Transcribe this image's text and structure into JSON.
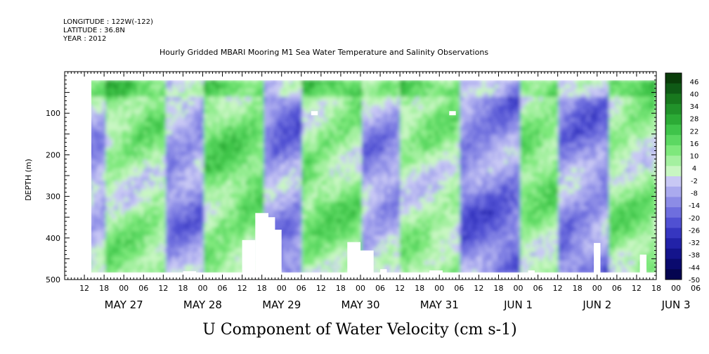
{
  "header": {
    "longitude": "LONGITUDE : 122W(-122)",
    "latitude": "LATITUDE : 36.8N",
    "year": "YEAR : 2012",
    "title": "Hourly Gridded MBARI Mooring M1 Sea Water Temperature and Salinity Observations"
  },
  "chart_data": {
    "type": "heatmap",
    "title": "Hourly Gridded MBARI Mooring M1 Sea Water Temperature and Salinity Observations",
    "xlabel": "U Component of Water Velocity (cm s-1)",
    "ylabel": "DEPTH (m)",
    "ylim": [
      500,
      0
    ],
    "y_ticks": [
      "100",
      "200",
      "300",
      "400",
      "500"
    ],
    "x_start_hour": 0,
    "x_end_hour": 180,
    "x_hour_ticks": [
      "12",
      "18",
      "00",
      "06",
      "12",
      "18",
      "00",
      "06",
      "12",
      "18",
      "00",
      "06",
      "12",
      "18",
      "00",
      "06",
      "12",
      "18",
      "00",
      "06",
      "12",
      "18",
      "00",
      "06",
      "12",
      "18",
      "00",
      "06",
      "12",
      "18",
      "00",
      "06"
    ],
    "x_date_labels": [
      "MAY 27",
      "MAY 28",
      "MAY 29",
      "MAY 30",
      "MAY 31",
      "JUN  1",
      "JUN  2",
      "JUN  3"
    ],
    "data_depth_range": [
      20,
      485
    ],
    "colorbar": {
      "min": -50,
      "max": 50,
      "labels": [
        "46",
        "40",
        "34",
        "28",
        "22",
        "16",
        "10",
        "4",
        "-2",
        "-8",
        "-14",
        "-20",
        "-26",
        "-32",
        "-38",
        "-44",
        "-50"
      ],
      "colors": [
        "#0a3d0a",
        "#0f5a16",
        "#18781e",
        "#21922a",
        "#2cab36",
        "#3fc44a",
        "#5cd862",
        "#7ee87c",
        "#a4f0a0",
        "#c8f6c2",
        "#c8c8f4",
        "#aaaaee",
        "#8c8ce6",
        "#6e6ede",
        "#5050d2",
        "#3636c0",
        "#2222a8",
        "#14148c",
        "#0a0a6e",
        "#040450"
      ]
    },
    "temporal_pattern": [
      {
        "hour_from": 0,
        "hour_to": 12,
        "velocity": -6
      },
      {
        "hour_from": 12,
        "hour_to": 30,
        "velocity": 8
      },
      {
        "hour_from": 30,
        "hour_to": 42,
        "velocity": -10
      },
      {
        "hour_from": 42,
        "hour_to": 60,
        "velocity": 12
      },
      {
        "hour_from": 60,
        "hour_to": 72,
        "velocity": -12
      },
      {
        "hour_from": 72,
        "hour_to": 90,
        "velocity": 10
      },
      {
        "hour_from": 90,
        "hour_to": 102,
        "velocity": -8
      },
      {
        "hour_from": 102,
        "hour_to": 120,
        "velocity": 6
      },
      {
        "hour_from": 120,
        "hour_to": 138,
        "velocity": -14
      },
      {
        "hour_from": 138,
        "hour_to": 150,
        "velocity": 10
      },
      {
        "hour_from": 150,
        "hour_to": 165,
        "velocity": -12
      },
      {
        "hour_from": 165,
        "hour_to": 180,
        "velocity": 8
      }
    ]
  }
}
